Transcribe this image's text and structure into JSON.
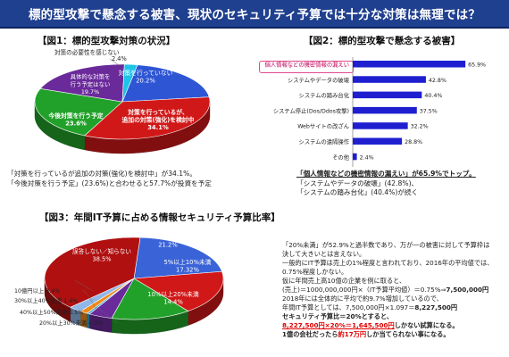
{
  "header": {
    "title": "標的型攻撃で懸念する被害、現状のセキュリティ予算では十分な対策は無理では？"
  },
  "fig1": {
    "title": "【図1：標的型攻撃対策の状況】",
    "notes": [
      "「対策を行っているが追加の対策(強化)を検討中」が34.1%。",
      "「今後対策を行う予定」(23.6%)と合わせると57.7%が投資を予定"
    ]
  },
  "fig2": {
    "title": "【図2：標的型攻撃で懸念する被害】",
    "notes": [
      "「個人情報などの機密情報の漏えい」が65.9%でトップ。",
      "「システムやデータの破壊」(42.8%)、",
      "「システムの踏み台化」(40.4%)が続く"
    ]
  },
  "fig3": {
    "title": "【図3：年間IT予算に占める情報セキュリティ予算比率】"
  },
  "analysis": {
    "lines": [
      "「20%未満」が52.9%と過半数であり、万が一の被害に対して予算枠は",
      "決して大きいとは言えない。",
      "一般的にIT予算は売上の1%程度と言われており、2016年の平均値では、",
      "0.75%程度しかない。",
      "仮に年間売上高10億の企業を例に取ると、",
      "(売上)＝1000,000,000円×（IT予算平均値）＝0.75%⇒",
      "7,500,000円",
      "2018年には全体的に平均で約9.7%増加しているので、",
      "年間IT予算としては、7,500,000円×1.097＝",
      "8,227,500円",
      "セキュリティ予算比＝20%とすると、",
      "8,227,500円×20%＝1,645,500円",
      "しかない試算になる。",
      "1億の会社だったら約17万円",
      "しか当てられない事になる。"
    ]
  },
  "chart_data": [
    {
      "type": "pie",
      "title": "【図1：標的型攻撃対策の状況】",
      "labels": [
        "対策を行っていない",
        "対策を行っているが、追加の対策(強化)を検討中",
        "今後対策を行う予定",
        "具体的な対策を行う予定はない",
        "対策の必要性を感じない"
      ],
      "values": [
        20.2,
        34.1,
        23.6,
        19.7,
        2.4
      ],
      "colors": [
        "#2e55d4",
        "#d11818",
        "#22a12a",
        "#6a2a9a",
        "#1ec4e8"
      ]
    },
    {
      "type": "bar",
      "orientation": "horizontal",
      "title": "【図2：標的型攻撃で懸念する被害】",
      "categories": [
        "個人情報などの機密情報の漏えい",
        "システムやデータの破壊",
        "システムの踏み台化",
        "システム停止(Dos/Ddos攻撃)",
        "Webサイトの改ざん",
        "システムの遠隔操作",
        "その他"
      ],
      "values": [
        65.9,
        42.8,
        40.4,
        37.5,
        32.2,
        28.8,
        2.4
      ],
      "value_labels": [
        "65.9%",
        "42.8%",
        "40.4%",
        "37.5%",
        "32.2%",
        "28.8%",
        "2.4%"
      ],
      "highlight_index": 0,
      "bar_color": "#1f1fd0",
      "xlim": [
        0,
        70
      ]
    },
    {
      "type": "pie",
      "title": "【図3：年間IT予算に占める情報セキュリティ予算比率】",
      "labels": [
        "5%未満",
        "5%以上10%未満",
        "10%以上20%未満",
        "20%以上30%未満",
        "40%以上50%未満",
        "30%以上40%未満",
        "10億円以上",
        "誤答しない／知らない"
      ],
      "values": [
        21.2,
        17.32,
        14.4,
        4.3,
        0.5,
        1.4,
        2.4,
        38.5
      ],
      "value_labels": [
        "21.2%",
        "17.32%",
        "14.4%",
        "4.3%",
        "0.5%",
        "1.4%",
        "2.4%",
        "38.5%"
      ],
      "colors": [
        "#3a63d8",
        "#d11818",
        "#22a12a",
        "#6a2a9a",
        "#2fa6d8",
        "#f08a1a",
        "#8fb8e8",
        "#b01010"
      ]
    }
  ]
}
